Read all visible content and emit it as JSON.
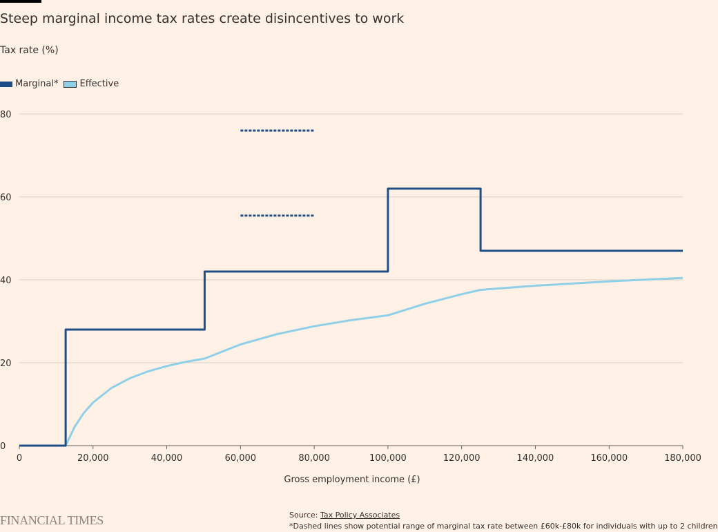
{
  "title": "Steep marginal income tax rates create disincentives to work",
  "source_label": "Source:",
  "source_link": "Tax Policy Associates",
  "footnote": "*Dashed lines show potential range of marginal tax rate between £60k-£80k for individuals with up to 2 children",
  "brand": "FINANCIAL TIMES",
  "chart_data": {
    "type": "line",
    "ylabel": "Tax rate (%)",
    "xlabel": "Gross employment income (£)",
    "xlim": [
      0,
      180000
    ],
    "ylim": [
      0,
      80
    ],
    "xticks": [
      0,
      20000,
      40000,
      60000,
      80000,
      100000,
      120000,
      140000,
      160000,
      180000
    ],
    "xtick_labels": [
      "0",
      "20,000",
      "40,000",
      "60,000",
      "80,000",
      "100,000",
      "120,000",
      "140,000",
      "160,000",
      "180,000"
    ],
    "yticks": [
      0,
      20,
      40,
      60,
      80
    ],
    "ytick_labels": [
      "0",
      "20",
      "40",
      "60",
      "80"
    ],
    "grid": "horizontal",
    "legend_placement": "top-left",
    "series": [
      {
        "name": "Marginal*",
        "color": "#1f4e86",
        "step": true,
        "points": [
          [
            0,
            0
          ],
          [
            12570,
            0
          ],
          [
            12570,
            28
          ],
          [
            50270,
            28
          ],
          [
            50270,
            42
          ],
          [
            100000,
            42
          ],
          [
            100000,
            62
          ],
          [
            125140,
            62
          ],
          [
            125140,
            47
          ],
          [
            180000,
            47
          ]
        ]
      },
      {
        "name": "Effective",
        "color": "#8fd0e8",
        "points": [
          [
            0,
            0
          ],
          [
            12570,
            0
          ],
          [
            15000,
            4.54
          ],
          [
            17500,
            7.89
          ],
          [
            20000,
            10.4
          ],
          [
            25000,
            13.92
          ],
          [
            30000,
            16.27
          ],
          [
            35000,
            17.94
          ],
          [
            40000,
            19.2
          ],
          [
            45000,
            20.18
          ],
          [
            50270,
            21.0
          ],
          [
            60000,
            24.41
          ],
          [
            70000,
            26.92
          ],
          [
            80000,
            28.8
          ],
          [
            90000,
            30.27
          ],
          [
            100000,
            31.44
          ],
          [
            110000,
            34.22
          ],
          [
            120000,
            36.54
          ],
          [
            125140,
            37.58
          ],
          [
            140000,
            38.58
          ],
          [
            160000,
            39.63
          ],
          [
            180000,
            40.45
          ]
        ]
      }
    ],
    "dashed_lines": [
      {
        "x": [
          60000,
          80000
        ],
        "y": 76,
        "color": "#1f4e86"
      },
      {
        "x": [
          60000,
          80000
        ],
        "y": 55.5,
        "color": "#1f4e86"
      }
    ]
  }
}
